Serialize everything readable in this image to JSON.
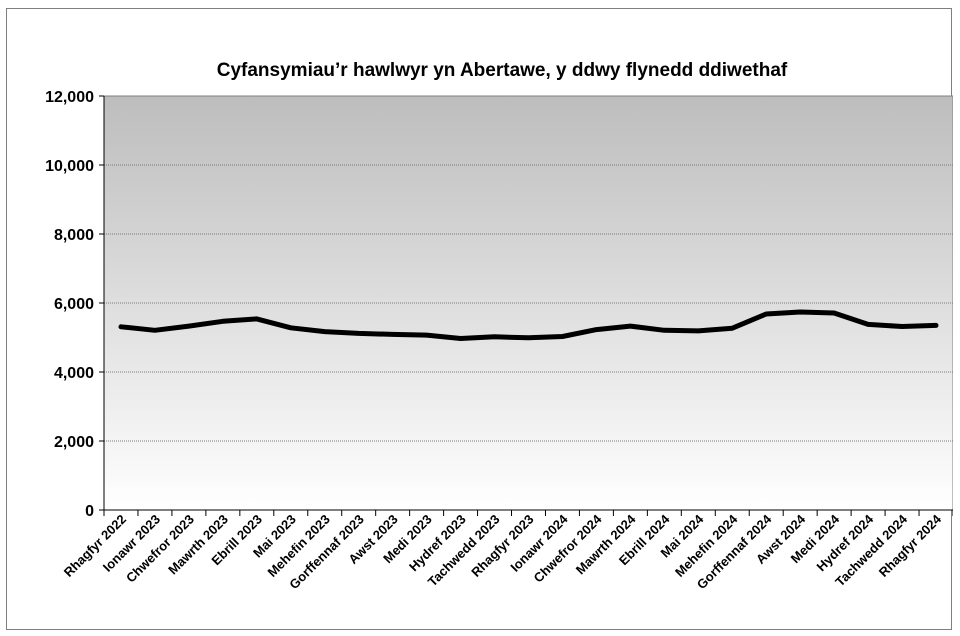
{
  "chart_data": {
    "type": "line",
    "title": "Cyfansymiau’r hawlwyr yn Abertawe, y ddwy flynedd ddiwethaf",
    "xlabel": "",
    "ylabel": "",
    "ylim": [
      0,
      12000
    ],
    "yticks": [
      "0",
      "2,000",
      "4,000",
      "6,000",
      "8,000",
      "10,000",
      "12,000"
    ],
    "grid": true,
    "legend": "none",
    "line_color": "#000000",
    "background_gradient": [
      "#bdbdbd",
      "#ffffff"
    ],
    "categories": [
      "Rhagfyr 2022",
      "Ionawr 2023",
      "Chwefror 2023",
      "Mawrth 2023",
      "Ebrill 2023",
      "Mai 2023",
      "Mehefin 2023",
      "Gorffennaf 2023",
      "Awst 2023",
      "Medi 2023",
      "Hydref 2023",
      "Tachwedd 2023",
      "Rhagfyr 2023",
      "Ionawr 2024",
      "Chwefror 2024",
      "Mawrth 2024",
      "Ebrill 2024",
      "Mai 2024",
      "Mehefin 2024",
      "Gorffennaf 2024",
      "Awst 2024",
      "Medi 2024",
      "Hydref 2024",
      "Tachwedd 2024",
      "Rhagfyr 2024"
    ],
    "series": [
      {
        "values": [
          5310,
          5210,
          5330,
          5470,
          5540,
          5280,
          5170,
          5120,
          5090,
          5070,
          4970,
          5020,
          4990,
          5030,
          5230,
          5330,
          5210,
          5190,
          5270,
          5680,
          5740,
          5710,
          5380,
          5320,
          5350
        ]
      }
    ]
  }
}
